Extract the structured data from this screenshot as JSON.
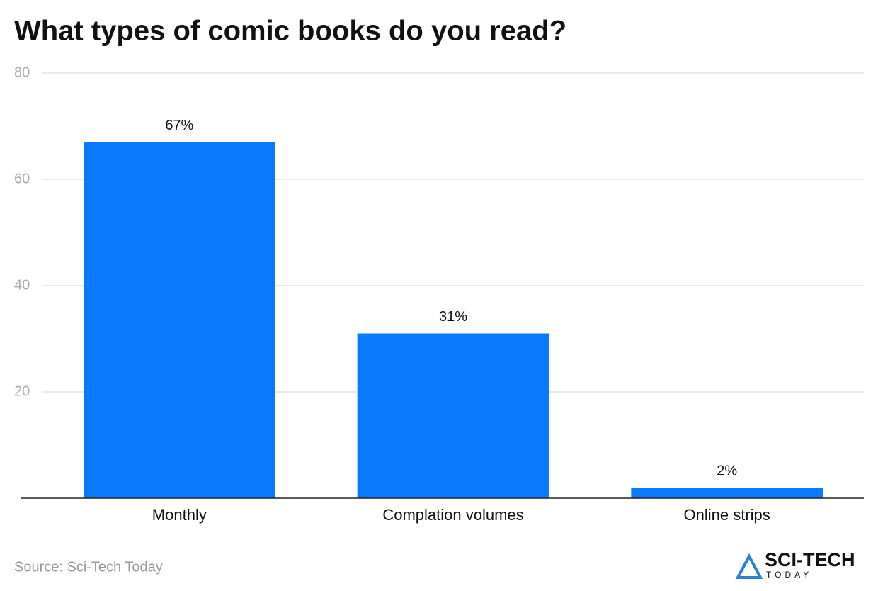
{
  "chart_data": {
    "type": "bar",
    "title": "What types of comic books do you read?",
    "categories": [
      "Monthly",
      "Complation volumes",
      "Online strips"
    ],
    "values": [
      67,
      31,
      2
    ],
    "value_labels": [
      "67%",
      "31%",
      "2%"
    ],
    "color": "#0a78ff",
    "ylim": [
      0,
      80
    ],
    "yticks": [
      20,
      40,
      60,
      80
    ],
    "grid": true,
    "source": "Source: Sci-Tech Today",
    "logo": {
      "top": "SCI-TECH",
      "bottom": "TODAY"
    }
  }
}
